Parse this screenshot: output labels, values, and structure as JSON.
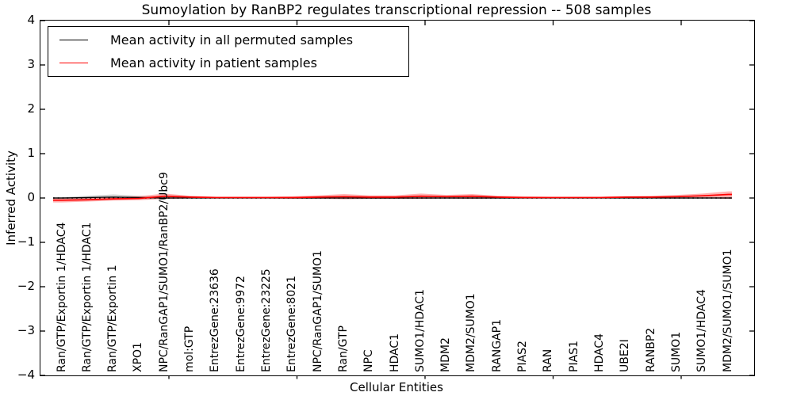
{
  "figure": {
    "title": "Sumoylation by RanBP2 regulates transcriptional repression -- 508 samples",
    "xlabel": "Cellular Entities",
    "ylabel": "Inferred Activity"
  },
  "legend": {
    "items": [
      {
        "label": "Mean activity in all permuted samples",
        "color": "#000000"
      },
      {
        "label": "Mean activity in patient samples",
        "color": "#ff0000"
      }
    ]
  },
  "axes": {
    "y_tick_labels": [
      "4",
      "3",
      "2",
      "1",
      "0",
      "−1",
      "−2",
      "−3",
      "−4"
    ],
    "ylim": [
      -4,
      4
    ]
  },
  "chart_data": {
    "type": "line",
    "title": "Sumoylation by RanBP2 regulates transcriptional repression -- 508 samples",
    "xlabel": "Cellular Entities",
    "ylabel": "Inferred Activity",
    "ylim": [
      -4,
      4
    ],
    "yticks": [
      4,
      3,
      2,
      1,
      0,
      -1,
      -2,
      -3,
      -4
    ],
    "grid": false,
    "legend_position": "upper left",
    "zero_reference_line": "dotted",
    "categories": [
      "Ran/GTP/Exportin 1/HDAC4",
      "Ran/GTP/Exportin 1/HDAC1",
      "Ran/GTP/Exportin 1",
      "XPO1",
      "NPC/RanGAP1/SUMO1/RanBP2/Ubc9",
      "mol:GTP",
      "EntrezGene:23636",
      "EntrezGene:9972",
      "EntrezGene:23225",
      "EntrezGene:8021",
      "NPC/RanGAP1/SUMO1",
      "Ran/GTP",
      "NPC",
      "HDAC1",
      "SUMO1/HDAC1",
      "MDM2",
      "MDM2/SUMO1",
      "RANGAP1",
      "PIAS2",
      "RAN",
      "PIAS1",
      "HDAC4",
      "UBE2I",
      "RANBP2",
      "SUMO1",
      "SUMO1/HDAC4",
      "MDM2/SUMO1/SUMO1"
    ],
    "series": [
      {
        "name": "Mean activity in all permuted samples",
        "color": "#000000",
        "band_color": "rgba(0,0,0,0.18)",
        "values": [
          0.0,
          0.01,
          0.02,
          0.01,
          0.0,
          0.0,
          0.0,
          0.0,
          0.0,
          0.0,
          0.0,
          0.0,
          0.0,
          0.0,
          0.0,
          0.0,
          0.0,
          0.0,
          0.0,
          0.0,
          0.0,
          0.0,
          0.0,
          0.0,
          0.0,
          0.0,
          0.0
        ],
        "band_upper": [
          0.02,
          0.05,
          0.08,
          0.05,
          0.02,
          0.01,
          0.01,
          0.01,
          0.01,
          0.01,
          0.01,
          0.02,
          0.02,
          0.02,
          0.02,
          0.02,
          0.02,
          0.02,
          0.01,
          0.01,
          0.01,
          0.01,
          0.01,
          0.01,
          0.02,
          0.02,
          0.02
        ],
        "band_lower": [
          -0.03,
          -0.03,
          -0.03,
          -0.03,
          -0.02,
          -0.01,
          -0.01,
          -0.01,
          -0.01,
          -0.01,
          -0.01,
          -0.02,
          -0.02,
          -0.02,
          -0.02,
          -0.02,
          -0.02,
          -0.02,
          -0.01,
          -0.01,
          -0.01,
          -0.01,
          -0.01,
          -0.01,
          -0.02,
          -0.02,
          -0.02
        ]
      },
      {
        "name": "Mean activity in patient samples",
        "color": "#ff0000",
        "band_color": "rgba(255,0,0,0.30)",
        "values": [
          -0.05,
          -0.04,
          -0.02,
          -0.01,
          0.04,
          0.02,
          0.01,
          0.01,
          0.01,
          0.01,
          0.02,
          0.03,
          0.02,
          0.02,
          0.04,
          0.03,
          0.04,
          0.02,
          0.01,
          0.01,
          0.01,
          0.01,
          0.02,
          0.02,
          0.03,
          0.05,
          0.08
        ],
        "band_upper": [
          -0.01,
          0.0,
          0.02,
          0.04,
          0.1,
          0.05,
          0.03,
          0.03,
          0.03,
          0.04,
          0.06,
          0.09,
          0.06,
          0.06,
          0.1,
          0.07,
          0.09,
          0.05,
          0.04,
          0.03,
          0.03,
          0.03,
          0.04,
          0.05,
          0.07,
          0.1,
          0.15
        ],
        "band_lower": [
          -0.1,
          -0.08,
          -0.06,
          -0.05,
          -0.02,
          -0.01,
          -0.01,
          -0.01,
          -0.01,
          -0.02,
          -0.02,
          -0.03,
          -0.02,
          -0.02,
          -0.02,
          -0.01,
          -0.02,
          -0.01,
          -0.01,
          -0.01,
          -0.01,
          -0.01,
          -0.01,
          -0.01,
          -0.01,
          0.0,
          -0.02
        ]
      }
    ]
  }
}
